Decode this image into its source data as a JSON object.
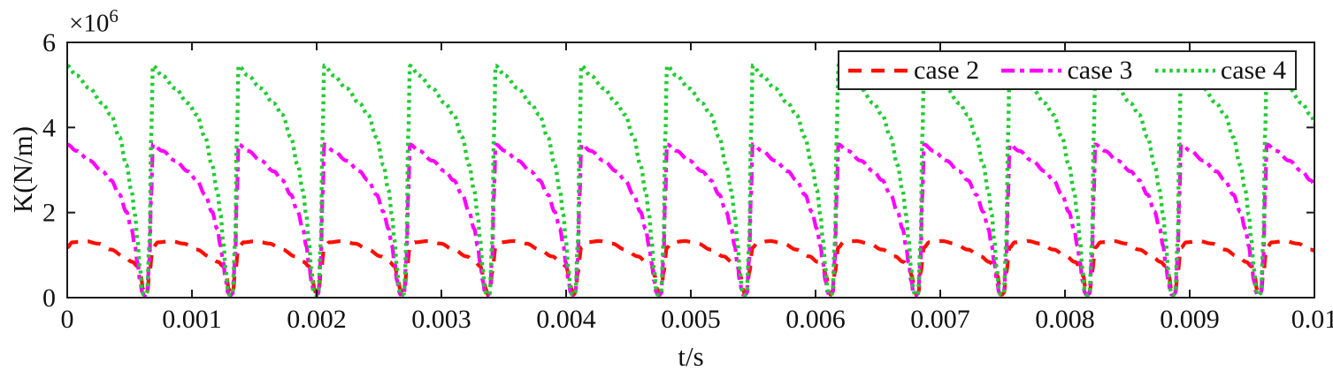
{
  "figure": {
    "ylabel": "K(N/m)",
    "xlabel": "t/s",
    "y_exponent_base": "×10",
    "y_exponent_power": "6"
  },
  "legend": {
    "position": "inside top-right, horizontal",
    "items": [
      {
        "label": "case 2"
      },
      {
        "label": "case 3"
      },
      {
        "label": "case 4"
      }
    ]
  },
  "chart_data": {
    "type": "line",
    "title": "",
    "xlabel": "t/s",
    "ylabel": "K(N/m)",
    "xlim": [
      0,
      0.01
    ],
    "ylim": [
      0,
      6000000
    ],
    "x_ticks": [
      0,
      0.001,
      0.002,
      0.003,
      0.004,
      0.005,
      0.006,
      0.007,
      0.008,
      0.009,
      0.01
    ],
    "x_tick_labels": [
      "0",
      "0.001",
      "0.002",
      "0.003",
      "0.004",
      "0.005",
      "0.006",
      "0.007",
      "0.008",
      "0.009",
      "0.01"
    ],
    "y_ticks": [
      0,
      2000000,
      4000000,
      6000000
    ],
    "y_tick_labels": [
      "0",
      "2",
      "4",
      "6"
    ],
    "y_scale_exponent": 6,
    "grid": false,
    "box": true,
    "tick_direction": "in",
    "waveform_period_s": 0.000687,
    "first_minimum_s": 0.000625,
    "cycle_fraction_reference": "fraction 0 and 1 = waveform minimum; values in 1e6 N/m",
    "series": [
      {
        "name": "case 2",
        "color": "#ff0e00",
        "line_style": "dashed",
        "dash": "15 11",
        "width": 4.2,
        "peak_N_per_m": 1330000,
        "min_N_per_m": 70000,
        "cycle": [
          [
            0,
            0.07
          ],
          [
            0.025,
            0.13
          ],
          [
            0.05,
            0.6
          ],
          [
            0.09,
            1.18
          ],
          [
            0.15,
            1.3
          ],
          [
            0.3,
            1.33
          ],
          [
            0.45,
            1.27
          ],
          [
            0.6,
            1.13
          ],
          [
            0.75,
            0.97
          ],
          [
            0.85,
            0.84
          ],
          [
            0.91,
            0.74
          ],
          [
            0.95,
            0.5
          ],
          [
            0.975,
            0.2
          ],
          [
            1,
            0.07
          ]
        ]
      },
      {
        "name": "case 3",
        "color": "#ff00ff",
        "line_style": "dash-dot",
        "dash": "15 6 5 6",
        "width": 4.2,
        "peak_N_per_m": 3600000,
        "min_N_per_m": 60000,
        "cycle": [
          [
            0,
            0.06
          ],
          [
            0.02,
            0.1
          ],
          [
            0.05,
            0.9
          ],
          [
            0.07,
            2.4
          ],
          [
            0.09,
            3.6
          ],
          [
            0.2,
            3.45
          ],
          [
            0.35,
            3.22
          ],
          [
            0.5,
            2.97
          ],
          [
            0.6,
            2.76
          ],
          [
            0.7,
            2.42
          ],
          [
            0.78,
            2.02
          ],
          [
            0.84,
            1.62
          ],
          [
            0.88,
            1.22
          ],
          [
            0.91,
            0.82
          ],
          [
            0.94,
            0.4
          ],
          [
            0.965,
            0.13
          ],
          [
            0.98,
            0.07
          ],
          [
            1,
            0.06
          ]
        ]
      },
      {
        "name": "case 4",
        "color": "#22cc33",
        "line_style": "dotted",
        "dash": "3.5 4.6",
        "width": 4.4,
        "peak_N_per_m": 5450000,
        "min_N_per_m": 60000,
        "cycle": [
          [
            0,
            0.06
          ],
          [
            0.02,
            0.1
          ],
          [
            0.05,
            1.3
          ],
          [
            0.07,
            3.8
          ],
          [
            0.09,
            5.45
          ],
          [
            0.2,
            5.22
          ],
          [
            0.35,
            4.92
          ],
          [
            0.5,
            4.57
          ],
          [
            0.6,
            4.3
          ],
          [
            0.7,
            3.77
          ],
          [
            0.78,
            3.12
          ],
          [
            0.84,
            2.52
          ],
          [
            0.88,
            1.95
          ],
          [
            0.91,
            1.35
          ],
          [
            0.94,
            0.67
          ],
          [
            0.965,
            0.18
          ],
          [
            0.98,
            0.08
          ],
          [
            1,
            0.06
          ]
        ]
      }
    ]
  }
}
